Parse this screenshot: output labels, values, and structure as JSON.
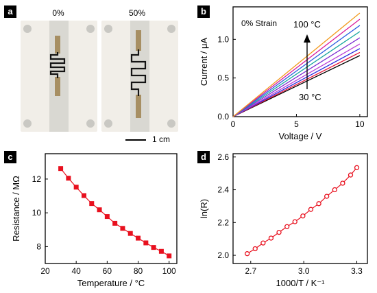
{
  "panels": {
    "a": {
      "tag": "a",
      "photo_labels": [
        "0%",
        "50%"
      ],
      "scalebar_label": "1 cm",
      "colors": {
        "tape": "#f1eee8",
        "channel": "#d9d8d2",
        "electrode": "#a78f63",
        "wire": "#141414",
        "frame": "#c9c8c3"
      }
    },
    "b": {
      "tag": "b"
    },
    "c": {
      "tag": "c"
    },
    "d": {
      "tag": "d"
    }
  },
  "chart_data": [
    {
      "panel": "b",
      "type": "line",
      "xlabel": "Voltage / V",
      "ylabel": "Current / μA",
      "xlim": [
        0,
        10.6
      ],
      "ylim": [
        0,
        1.42
      ],
      "xticks": [
        0,
        5,
        10
      ],
      "yticks": [
        0.0,
        0.5,
        1.0
      ],
      "annotations": [
        "0% Strain",
        "100 °C",
        "30 °C"
      ],
      "x": [
        0,
        10
      ],
      "series": [
        {
          "color": "#000000",
          "values": [
            0,
            0.79
          ]
        },
        {
          "color": "#e8173a",
          "values": [
            0,
            0.83
          ]
        },
        {
          "color": "#2a2ae0",
          "values": [
            0,
            0.88
          ]
        },
        {
          "color": "#b93fd6",
          "values": [
            0,
            0.94
          ]
        },
        {
          "color": "#7b2bd1",
          "values": [
            0,
            1.02
          ]
        },
        {
          "color": "#1aa6a0",
          "values": [
            0,
            1.1
          ]
        },
        {
          "color": "#2d5fe0",
          "values": [
            0,
            1.18
          ]
        },
        {
          "color": "#d8199a",
          "values": [
            0,
            1.26
          ]
        },
        {
          "color": "#f29a1d",
          "values": [
            0,
            1.34
          ]
        }
      ]
    },
    {
      "panel": "c",
      "type": "line",
      "xlabel": "Temperature / °C",
      "ylabel": "Resistance / MΩ",
      "xlim": [
        20,
        105
      ],
      "ylim": [
        7.0,
        13.5
      ],
      "xticks": [
        20,
        40,
        60,
        80,
        100
      ],
      "yticks": [
        8,
        10,
        12
      ],
      "marker": "square",
      "color": "#e8101e",
      "x": [
        30,
        35,
        40,
        45,
        50,
        55,
        60,
        65,
        70,
        75,
        80,
        85,
        90,
        95,
        100
      ],
      "values": [
        12.62,
        12.05,
        11.52,
        11.02,
        10.55,
        10.18,
        9.78,
        9.38,
        9.08,
        8.78,
        8.5,
        8.22,
        7.95,
        7.72,
        7.45
      ]
    },
    {
      "panel": "d",
      "type": "line",
      "xlabel": "1000/T / K⁻¹",
      "ylabel": "ln(R)",
      "xlim": [
        2.6,
        3.36
      ],
      "ylim": [
        1.95,
        2.62
      ],
      "xticks": [
        2.7,
        3.0,
        3.3
      ],
      "yticks": [
        2.0,
        2.2,
        2.4,
        2.6
      ],
      "marker": "circle-open",
      "color": "#e8101e",
      "x": [
        2.68,
        2.725,
        2.77,
        2.815,
        2.86,
        2.905,
        2.95,
        2.995,
        3.04,
        3.085,
        3.13,
        3.175,
        3.22,
        3.265,
        3.3
      ],
      "values": [
        2.01,
        2.04,
        2.075,
        2.105,
        2.14,
        2.175,
        2.205,
        2.24,
        2.28,
        2.315,
        2.36,
        2.4,
        2.44,
        2.49,
        2.535
      ]
    }
  ]
}
